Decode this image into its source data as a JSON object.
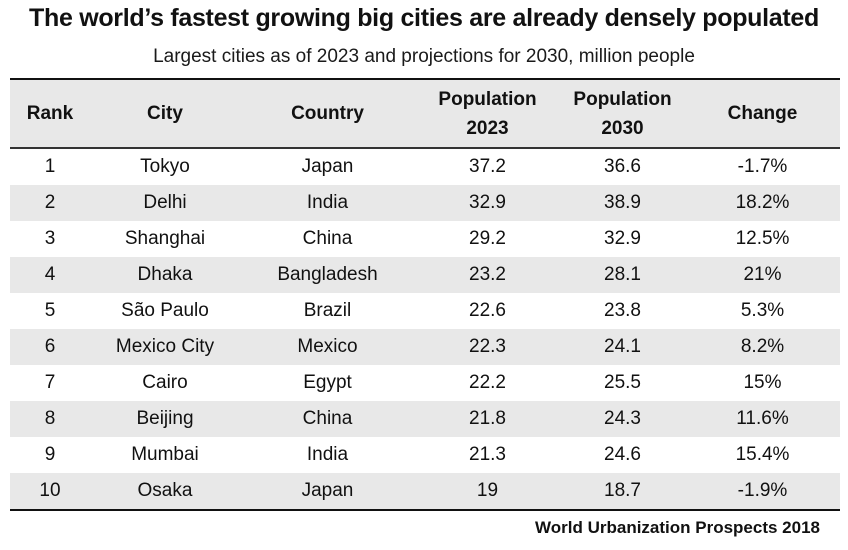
{
  "title": "The world’s fastest growing big cities are already densely populated",
  "subtitle": "Largest cities as of 2023 and projections for 2030, million people",
  "source": "World Urbanization Prospects 2018",
  "chart_data": {
    "type": "table",
    "title": "The world’s fastest growing big cities are already densely populated",
    "subtitle": "Largest cities as of 2023 and projections for 2030, million people",
    "headers": [
      {
        "line1": "Rank",
        "line2": ""
      },
      {
        "line1": "City",
        "line2": ""
      },
      {
        "line1": "Country",
        "line2": ""
      },
      {
        "line1": "Population",
        "line2": "2023"
      },
      {
        "line1": "Population",
        "line2": "2030"
      },
      {
        "line1": "Change",
        "line2": ""
      }
    ],
    "rows": [
      [
        "1",
        "Tokyo",
        "Japan",
        "37.2",
        "36.6",
        "-1.7%"
      ],
      [
        "2",
        "Delhi",
        "India",
        "32.9",
        "38.9",
        "18.2%"
      ],
      [
        "3",
        "Shanghai",
        "China",
        "29.2",
        "32.9",
        "12.5%"
      ],
      [
        "4",
        "Dhaka",
        "Bangladesh",
        "23.2",
        "28.1",
        "21%"
      ],
      [
        "5",
        "São Paulo",
        "Brazil",
        "22.6",
        "23.8",
        "5.3%"
      ],
      [
        "6",
        "Mexico City",
        "Mexico",
        "22.3",
        "24.1",
        "8.2%"
      ],
      [
        "7",
        "Cairo",
        "Egypt",
        "22.2",
        "25.5",
        "15%"
      ],
      [
        "8",
        "Beijing",
        "China",
        "21.8",
        "24.3",
        "11.6%"
      ],
      [
        "9",
        "Mumbai",
        "India",
        "21.3",
        "24.6",
        "15.4%"
      ],
      [
        "10",
        "Osaka",
        "Japan",
        "19",
        "18.7",
        "-1.9%"
      ]
    ]
  }
}
